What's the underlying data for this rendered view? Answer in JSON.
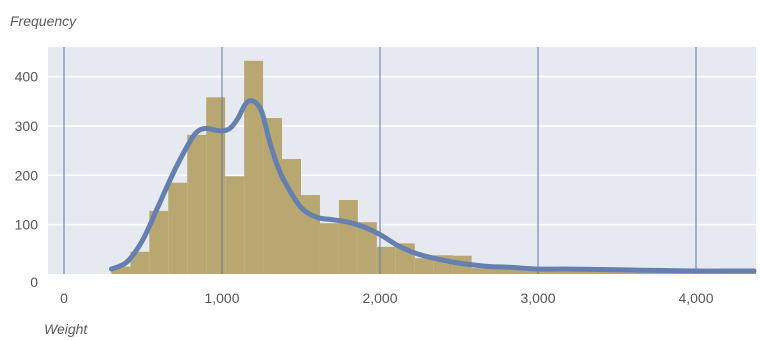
{
  "chart_data": {
    "type": "histogram",
    "title": "",
    "xlabel": "Weight",
    "ylabel": "Frequency",
    "xlim": [
      -200,
      4400
    ],
    "ylim": [
      0,
      460
    ],
    "x_ticks": [
      0,
      1000,
      2000,
      3000,
      4000
    ],
    "x_tick_labels": [
      "0",
      "1,000",
      "2,000",
      "3,000",
      "4,000"
    ],
    "y_ticks": [
      0,
      100,
      200,
      300,
      400
    ],
    "y_tick_labels": [
      "0",
      "100",
      "200",
      "300",
      "400"
    ],
    "grid": {
      "vertical": true,
      "horizontal": true
    },
    "colors": {
      "plot_background": "#e6eaf0",
      "grid": "#ffffff",
      "vertical_gridline": "#5c78a6",
      "bars": "#b9a772",
      "density_line": "#6580b0"
    },
    "histogram": {
      "bin_width": 120,
      "bins": [
        {
          "x0": 300,
          "count": 15
        },
        {
          "x0": 420,
          "count": 45
        },
        {
          "x0": 540,
          "count": 128
        },
        {
          "x0": 660,
          "count": 185
        },
        {
          "x0": 780,
          "count": 282
        },
        {
          "x0": 900,
          "count": 358
        },
        {
          "x0": 1020,
          "count": 198
        },
        {
          "x0": 1140,
          "count": 432
        },
        {
          "x0": 1260,
          "count": 316
        },
        {
          "x0": 1380,
          "count": 233
        },
        {
          "x0": 1500,
          "count": 160
        },
        {
          "x0": 1620,
          "count": 103
        },
        {
          "x0": 1740,
          "count": 150
        },
        {
          "x0": 1860,
          "count": 105
        },
        {
          "x0": 1980,
          "count": 55
        },
        {
          "x0": 2100,
          "count": 62
        },
        {
          "x0": 2220,
          "count": 32
        },
        {
          "x0": 2340,
          "count": 38
        },
        {
          "x0": 2460,
          "count": 37
        },
        {
          "x0": 2580,
          "count": 12
        },
        {
          "x0": 2700,
          "count": 12
        },
        {
          "x0": 2820,
          "count": 10
        },
        {
          "x0": 2940,
          "count": 8
        },
        {
          "x0": 3060,
          "count": 14
        },
        {
          "x0": 3180,
          "count": 10
        },
        {
          "x0": 3300,
          "count": 7
        },
        {
          "x0": 3420,
          "count": 5
        },
        {
          "x0": 3540,
          "count": 4
        },
        {
          "x0": 3660,
          "count": 5
        },
        {
          "x0": 3780,
          "count": 3
        },
        {
          "x0": 3900,
          "count": 3
        },
        {
          "x0": 4020,
          "count": 2
        },
        {
          "x0": 4140,
          "count": 3
        },
        {
          "x0": 4260,
          "count": 2
        }
      ]
    },
    "density_line": {
      "x": [
        300,
        400,
        500,
        600,
        700,
        800,
        850,
        900,
        950,
        1000,
        1050,
        1100,
        1150,
        1200,
        1250,
        1300,
        1350,
        1400,
        1500,
        1600,
        1700,
        1800,
        1900,
        2000,
        2100,
        2200,
        2300,
        2400,
        2500,
        2600,
        2700,
        2800,
        2900,
        3000,
        3200,
        3400,
        3600,
        3800,
        4000,
        4200,
        4400
      ],
      "y": [
        10,
        25,
        70,
        140,
        210,
        270,
        290,
        295,
        292,
        290,
        295,
        315,
        345,
        350,
        330,
        270,
        220,
        185,
        135,
        115,
        110,
        105,
        95,
        80,
        60,
        45,
        35,
        28,
        22,
        18,
        15,
        14,
        12,
        10,
        10,
        9,
        8,
        7,
        6,
        6,
        6
      ]
    }
  }
}
